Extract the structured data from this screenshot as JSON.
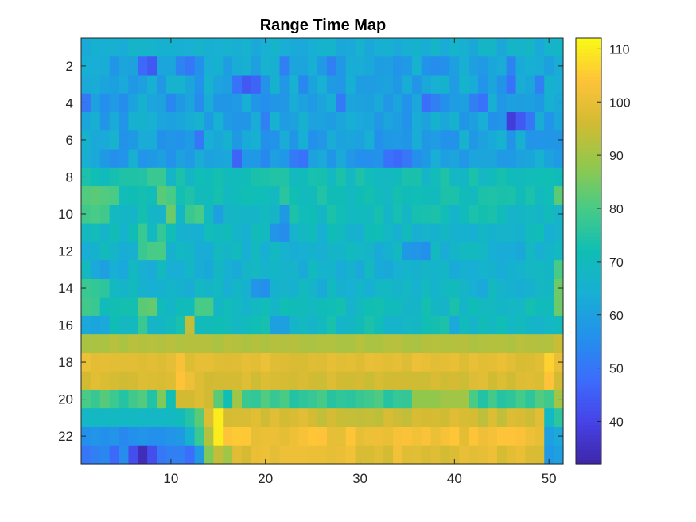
{
  "chart_data": {
    "type": "heatmap",
    "title": "Range Time Map",
    "xlabel": "",
    "ylabel": "",
    "x_range": [
      0.5,
      51.5
    ],
    "y_range": [
      0.5,
      23.5
    ],
    "y_direction": "reverse",
    "n_cols": 51,
    "n_rows": 23,
    "x_ticks": [
      10,
      20,
      30,
      40,
      50
    ],
    "y_ticks": [
      2,
      4,
      6,
      8,
      10,
      12,
      14,
      16,
      18,
      20,
      22
    ],
    "colormap": "parula",
    "clim": [
      32,
      112
    ],
    "colorbar_ticks": [
      40,
      50,
      60,
      70,
      80,
      90,
      100,
      110
    ],
    "colors": {
      "axis": "#262626",
      "background": "#ffffff"
    },
    "rows": [
      {
        "row": 1,
        "base": 65,
        "amp": 3,
        "spots": []
      },
      {
        "row": 2,
        "base": 61,
        "amp": 5,
        "spots": [
          [
            7,
            47
          ],
          [
            8,
            44
          ],
          [
            11,
            53
          ],
          [
            12,
            50
          ],
          [
            22,
            52
          ],
          [
            27,
            52
          ],
          [
            38,
            55
          ],
          [
            46,
            53
          ]
        ]
      },
      {
        "row": 3,
        "base": 61,
        "amp": 5,
        "spots": [
          [
            17,
            49
          ],
          [
            18,
            44
          ],
          [
            19,
            46
          ],
          [
            24,
            54
          ],
          [
            36,
            57
          ],
          [
            46,
            49
          ],
          [
            49,
            52
          ]
        ]
      },
      {
        "row": 4,
        "base": 60,
        "amp": 5,
        "spots": [
          [
            1,
            50
          ],
          [
            10,
            54
          ],
          [
            13,
            55
          ],
          [
            28,
            51
          ],
          [
            37,
            48
          ],
          [
            38,
            52
          ],
          [
            42,
            52
          ],
          [
            43,
            49
          ]
        ]
      },
      {
        "row": 5,
        "base": 61,
        "amp": 5,
        "spots": [
          [
            20,
            52
          ],
          [
            46,
            38
          ],
          [
            47,
            44
          ],
          [
            48,
            50
          ]
        ]
      },
      {
        "row": 6,
        "base": 61,
        "amp": 5,
        "spots": [
          [
            9,
            56
          ],
          [
            13,
            50
          ],
          [
            20,
            56
          ]
        ]
      },
      {
        "row": 7,
        "base": 60,
        "amp": 5,
        "spots": [
          [
            17,
            46
          ],
          [
            20,
            54
          ],
          [
            23,
            51
          ],
          [
            24,
            49
          ],
          [
            33,
            49
          ],
          [
            34,
            47
          ],
          [
            35,
            50
          ]
        ]
      },
      {
        "row": 8,
        "base": 71,
        "amp": 4,
        "spots": [
          [
            8,
            78
          ],
          [
            9,
            78
          ]
        ]
      },
      {
        "row": 9,
        "base": 72,
        "amp": 4,
        "spots": [
          [
            1,
            81
          ],
          [
            2,
            82
          ],
          [
            3,
            81
          ],
          [
            4,
            80
          ],
          [
            9,
            82
          ],
          [
            10,
            80
          ],
          [
            51,
            82
          ]
        ]
      },
      {
        "row": 10,
        "base": 70,
        "amp": 4,
        "spots": [
          [
            1,
            79
          ],
          [
            2,
            80
          ],
          [
            3,
            79
          ],
          [
            10,
            84
          ],
          [
            12,
            78
          ],
          [
            13,
            80
          ],
          [
            15,
            60
          ],
          [
            22,
            58
          ]
        ]
      },
      {
        "row": 11,
        "base": 68,
        "amp": 4,
        "spots": [
          [
            7,
            78
          ],
          [
            9,
            77
          ],
          [
            21,
            57
          ],
          [
            22,
            55
          ]
        ]
      },
      {
        "row": 12,
        "base": 66,
        "amp": 4,
        "spots": [
          [
            7,
            78
          ],
          [
            8,
            80
          ],
          [
            9,
            80
          ],
          [
            35,
            58
          ],
          [
            36,
            57
          ],
          [
            37,
            56
          ]
        ]
      },
      {
        "row": 13,
        "base": 66,
        "amp": 4,
        "spots": [
          [
            2,
            62
          ],
          [
            3,
            60
          ],
          [
            5,
            62
          ],
          [
            51,
            80
          ]
        ]
      },
      {
        "row": 14,
        "base": 66,
        "amp": 4,
        "spots": [
          [
            1,
            78
          ],
          [
            2,
            77
          ],
          [
            3,
            76
          ],
          [
            19,
            57
          ],
          [
            20,
            56
          ],
          [
            51,
            84
          ]
        ]
      },
      {
        "row": 15,
        "base": 70,
        "amp": 4,
        "spots": [
          [
            1,
            79
          ],
          [
            2,
            78
          ],
          [
            7,
            82
          ],
          [
            8,
            83
          ],
          [
            13,
            80
          ],
          [
            14,
            80
          ],
          [
            51,
            84
          ]
        ]
      },
      {
        "row": 16,
        "base": 70,
        "amp": 4,
        "spots": [
          [
            1,
            62
          ],
          [
            2,
            61
          ],
          [
            3,
            62
          ],
          [
            7,
            78
          ],
          [
            12,
            94
          ],
          [
            21,
            60
          ],
          [
            22,
            60
          ],
          [
            40,
            62
          ]
        ]
      },
      {
        "row": 17,
        "base": 92,
        "amp": 1,
        "spots": [
          [
            51,
            95
          ]
        ]
      },
      {
        "row": 18,
        "base": 99,
        "amp": 2,
        "spots": [
          [
            11,
            103
          ],
          [
            50,
            106
          ]
        ]
      },
      {
        "row": 19,
        "base": 97,
        "amp": 2,
        "spots": [
          [
            1,
            96
          ],
          [
            10,
            98
          ],
          [
            11,
            104
          ],
          [
            12,
            101
          ],
          [
            50,
            104
          ]
        ]
      },
      {
        "row": 20,
        "base": 78,
        "amp": 4,
        "spots": [
          [
            9,
            86
          ],
          [
            10,
            72
          ],
          [
            11,
            96
          ],
          [
            12,
            96
          ],
          [
            13,
            98
          ],
          [
            14,
            96
          ],
          [
            15,
            82
          ],
          [
            16,
            72
          ],
          [
            17,
            90
          ],
          [
            36,
            88
          ],
          [
            37,
            88
          ],
          [
            38,
            88
          ],
          [
            39,
            90
          ],
          [
            40,
            90
          ],
          [
            41,
            90
          ],
          [
            51,
            90
          ]
        ]
      },
      {
        "row": 21,
        "base": 96,
        "amp": 3,
        "spots": [
          [
            1,
            68
          ],
          [
            2,
            69
          ],
          [
            3,
            68
          ],
          [
            4,
            69
          ],
          [
            5,
            68
          ],
          [
            6,
            69
          ],
          [
            7,
            68
          ],
          [
            8,
            68
          ],
          [
            9,
            68
          ],
          [
            10,
            69
          ],
          [
            11,
            70
          ],
          [
            12,
            75
          ],
          [
            13,
            82
          ],
          [
            14,
            98
          ],
          [
            15,
            110
          ],
          [
            50,
            68
          ],
          [
            51,
            76
          ]
        ]
      },
      {
        "row": 22,
        "base": 102,
        "amp": 3,
        "spots": [
          [
            1,
            56
          ],
          [
            2,
            57
          ],
          [
            3,
            56
          ],
          [
            4,
            57
          ],
          [
            5,
            54
          ],
          [
            6,
            56
          ],
          [
            7,
            57
          ],
          [
            8,
            56
          ],
          [
            9,
            56
          ],
          [
            10,
            57
          ],
          [
            11,
            58
          ],
          [
            12,
            65
          ],
          [
            13,
            78
          ],
          [
            14,
            92
          ],
          [
            15,
            110
          ],
          [
            50,
            60
          ],
          [
            51,
            62
          ]
        ]
      },
      {
        "row": 23,
        "base": 99,
        "amp": 3,
        "spots": [
          [
            1,
            50
          ],
          [
            2,
            52
          ],
          [
            3,
            54
          ],
          [
            4,
            47
          ],
          [
            5,
            55
          ],
          [
            6,
            42
          ],
          [
            7,
            34
          ],
          [
            8,
            42
          ],
          [
            9,
            50
          ],
          [
            10,
            52
          ],
          [
            11,
            52
          ],
          [
            12,
            48
          ],
          [
            13,
            58
          ],
          [
            14,
            86
          ],
          [
            15,
            94
          ],
          [
            16,
            90
          ],
          [
            50,
            58
          ],
          [
            51,
            60
          ]
        ]
      }
    ]
  }
}
